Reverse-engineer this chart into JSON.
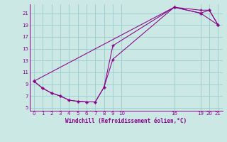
{
  "xlabel": "Windchill (Refroidissement éolien,°C)",
  "bg_color": "#cce8e5",
  "line_color": "#880088",
  "grid_color": "#99cccc",
  "xlim": [
    -0.5,
    21.5
  ],
  "ylim": [
    4.5,
    22.5
  ],
  "xticks": [
    0,
    1,
    2,
    3,
    4,
    5,
    6,
    7,
    8,
    9,
    10,
    16,
    19,
    20,
    21
  ],
  "yticks": [
    5,
    7,
    9,
    11,
    13,
    15,
    17,
    19,
    21
  ],
  "series1_x": [
    0,
    1,
    2,
    3,
    4,
    5,
    6,
    7,
    8,
    9,
    16,
    19,
    20,
    21
  ],
  "series1_y": [
    9.5,
    8.3,
    7.5,
    7.0,
    6.3,
    6.1,
    6.0,
    6.0,
    8.5,
    13.2,
    22.0,
    21.5,
    21.5,
    19.0
  ],
  "series2_x": [
    0,
    1,
    2,
    3,
    4,
    5,
    6,
    7,
    8,
    9,
    16,
    19,
    20,
    21
  ],
  "series2_y": [
    9.5,
    8.3,
    7.5,
    7.0,
    6.3,
    6.1,
    6.0,
    6.0,
    8.5,
    15.5,
    22.0,
    21.0,
    21.5,
    19.0
  ],
  "series3_x": [
    0,
    16,
    19,
    21
  ],
  "series3_y": [
    9.5,
    22.0,
    21.0,
    19.0
  ]
}
